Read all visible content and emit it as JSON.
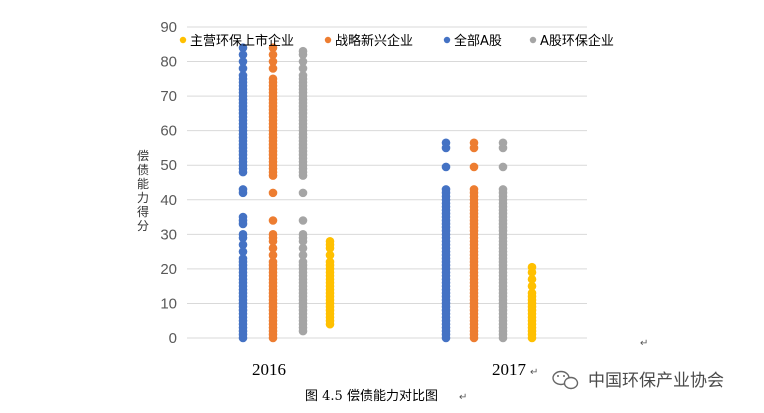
{
  "chart_data": {
    "type": "scatter",
    "ylabel": "偿债能力得分",
    "ylim": [
      0,
      90
    ],
    "yticks": [
      0,
      10,
      20,
      30,
      40,
      50,
      60,
      70,
      80,
      90
    ],
    "categories": [
      "2016",
      "2017"
    ],
    "legend_position": "top",
    "grid": true,
    "series": [
      {
        "name": "主营环保上市企业",
        "color": "#FFC000",
        "values": [
          [
            4,
            5,
            6,
            7,
            8,
            9,
            10,
            11,
            12,
            13,
            14,
            15,
            16,
            17,
            18,
            19,
            20,
            21,
            22,
            24,
            26,
            27,
            28
          ],
          [
            0,
            1,
            2,
            3,
            4,
            5,
            6,
            7,
            8,
            9,
            10,
            11,
            12,
            13,
            15,
            17,
            19,
            20.5
          ]
        ]
      },
      {
        "name": "战略新兴企业",
        "color": "#ED7D31",
        "values": [
          [
            0,
            1,
            2,
            3,
            4,
            5,
            6,
            7,
            8,
            9,
            10,
            11,
            12,
            13,
            14,
            15,
            16,
            17,
            18,
            19,
            20,
            21,
            22,
            24,
            26,
            28,
            29,
            30,
            34,
            42,
            47,
            48,
            49,
            50,
            51,
            52,
            53,
            54,
            55,
            56,
            57,
            58,
            59,
            60,
            61,
            62,
            63,
            64,
            65,
            66,
            67,
            68,
            69,
            70,
            71,
            72,
            73,
            74,
            75,
            78,
            80,
            82,
            84
          ],
          [
            0,
            1,
            2,
            3,
            4,
            5,
            6,
            7,
            8,
            9,
            10,
            11,
            12,
            13,
            14,
            15,
            16,
            17,
            18,
            19,
            20,
            21,
            22,
            23,
            24,
            25,
            26,
            27,
            28,
            29,
            30,
            31,
            32,
            33,
            34,
            35,
            36,
            37,
            38,
            39,
            40,
            41,
            42,
            43,
            49.5,
            55,
            56.5
          ]
        ]
      },
      {
        "name": "全部A股",
        "color": "#4472C4",
        "values": [
          [
            0,
            1,
            2,
            3,
            4,
            5,
            6,
            7,
            8,
            9,
            10,
            11,
            12,
            13,
            14,
            15,
            16,
            17,
            18,
            19,
            20,
            21,
            22,
            23,
            25,
            27,
            29,
            30,
            33,
            34,
            35,
            42,
            43,
            48,
            49,
            50,
            51,
            52,
            53,
            54,
            55,
            56,
            57,
            58,
            59,
            60,
            61,
            62,
            63,
            64,
            65,
            66,
            67,
            68,
            69,
            70,
            71,
            72,
            73,
            74,
            75,
            76,
            78,
            80,
            82,
            84
          ],
          [
            0,
            1,
            2,
            3,
            4,
            5,
            6,
            7,
            8,
            9,
            10,
            11,
            12,
            13,
            14,
            15,
            16,
            17,
            18,
            19,
            20,
            21,
            22,
            23,
            24,
            25,
            26,
            27,
            28,
            29,
            30,
            31,
            32,
            33,
            34,
            35,
            36,
            37,
            38,
            39,
            40,
            41,
            42,
            43,
            49.5,
            55,
            56.5
          ]
        ]
      },
      {
        "name": "A股环保企业",
        "color": "#A5A5A5",
        "values": [
          [
            2,
            3,
            4,
            5,
            6,
            7,
            8,
            9,
            10,
            11,
            12,
            13,
            14,
            15,
            16,
            17,
            18,
            19,
            20,
            21,
            22,
            24,
            26,
            28,
            29,
            30,
            34,
            42,
            47,
            48,
            49,
            50,
            51,
            52,
            53,
            54,
            55,
            56,
            57,
            58,
            59,
            60,
            61,
            62,
            63,
            64,
            65,
            66,
            67,
            68,
            69,
            70,
            71,
            72,
            73,
            74,
            75,
            76,
            78,
            80,
            82,
            83
          ],
          [
            0,
            1,
            2,
            3,
            4,
            5,
            6,
            7,
            8,
            9,
            10,
            11,
            12,
            13,
            14,
            15,
            16,
            17,
            18,
            19,
            20,
            21,
            22,
            23,
            24,
            25,
            26,
            27,
            28,
            29,
            30,
            31,
            32,
            33,
            34,
            35,
            36,
            37,
            38,
            39,
            40,
            41,
            42,
            43,
            49.5,
            55,
            56.5
          ]
        ]
      }
    ]
  },
  "caption": "图 4.5  偿债能力对比图",
  "watermark": {
    "text": "中国环保产业协会",
    "icon": "wechat-icon"
  },
  "edit_marks": {
    "paragraph_mark": "↵"
  }
}
